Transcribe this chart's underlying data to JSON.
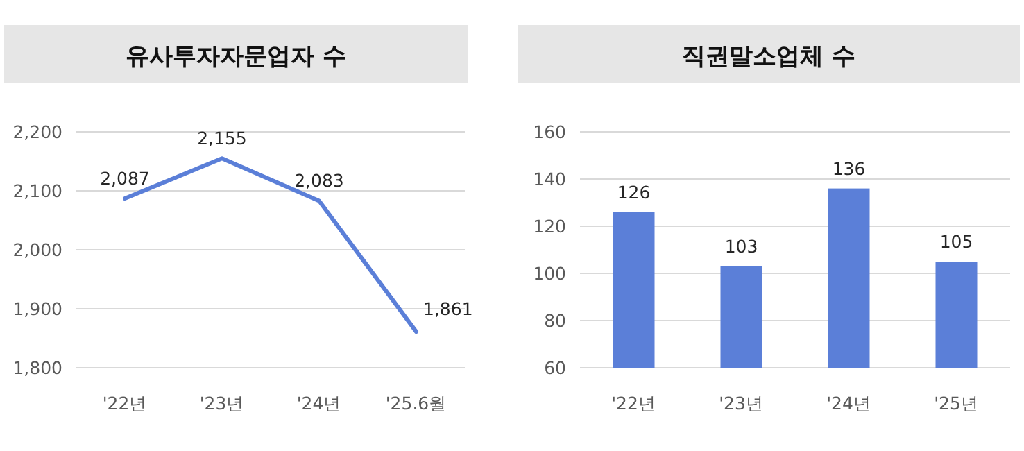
{
  "chart_data": [
    {
      "type": "line",
      "title": "유사투자자문업자 수",
      "categories": [
        "'22년",
        "'23년",
        "'24년",
        "'25.6월"
      ],
      "values": [
        2087,
        2155,
        2083,
        1861
      ],
      "color": "#5b7fd8",
      "ylim": [
        1800,
        2200
      ],
      "yticks": [
        {
          "value": 1800,
          "label": "1,800"
        },
        {
          "value": 1900,
          "label": "1,900"
        },
        {
          "value": 2000,
          "label": "2,000"
        },
        {
          "value": 2100,
          "label": "2,100"
        },
        {
          "value": 2200,
          "label": "2,200"
        }
      ],
      "grid": "y",
      "data_labels": true,
      "value_labels": [
        "2,087",
        "2,155",
        "2,083",
        "1,861"
      ],
      "marker": "none"
    },
    {
      "type": "bar",
      "title": "직권말소업체 수",
      "categories": [
        "'22년",
        "'23년",
        "'24년",
        "'25년"
      ],
      "values": [
        126,
        103,
        136,
        105
      ],
      "color": "#5b7fd8",
      "ylim": [
        60,
        160
      ],
      "yticks": [
        60,
        80,
        100,
        120,
        140,
        160
      ],
      "grid": "y",
      "data_labels": true
    }
  ]
}
